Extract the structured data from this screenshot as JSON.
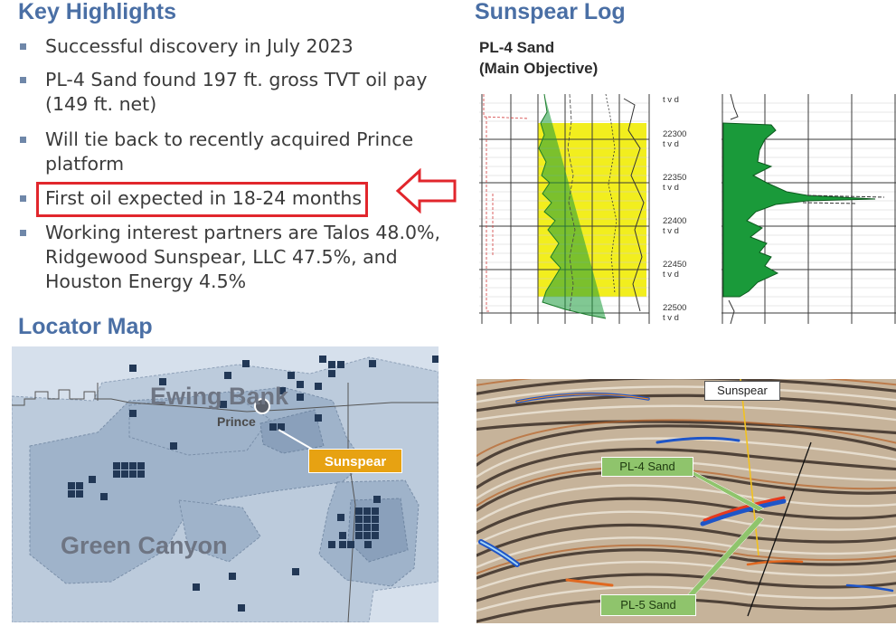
{
  "key_highlights": {
    "title": "Key Highlights",
    "bullets": [
      "Successful discovery in July 2023",
      "PL-4 Sand found 197 ft. gross TVT oil pay (149 ft. net)",
      "Will tie back to recently acquired Prince platform",
      "First oil expected in 18-24 months",
      "Working interest partners are Talos 48.0%, Ridgewood Sunspear, LLC 47.5%, and Houston Energy 4.5%"
    ],
    "highlight_color": "#e1262c"
  },
  "locator_map": {
    "title": "Locator Map",
    "labels": {
      "area_1": "Ewing Bank",
      "area_2": "Green Canyon",
      "platform": "Prince",
      "callout": "Sunspear"
    },
    "callout_color": "#e7a212"
  },
  "sunspear_log": {
    "title": "Sunspear Log",
    "subtitle_line1": "PL-4 Sand",
    "subtitle_line2": "(Main Objective)",
    "depth_unit": "t v d",
    "depths": [
      "22300",
      "22350",
      "22400",
      "22450",
      "22500"
    ],
    "oil_pay_color": "#f2ee1e",
    "curve_color": "#1a9a3a"
  },
  "seismic": {
    "labels": {
      "well": "Sunspear",
      "upper_sand": "PL-4 Sand",
      "lower_sand": "PL-5 Sand"
    },
    "label_color": "#8fc46c"
  },
  "colors": {
    "heading": "#4a6fa5",
    "bullet": "#6f87a9"
  }
}
